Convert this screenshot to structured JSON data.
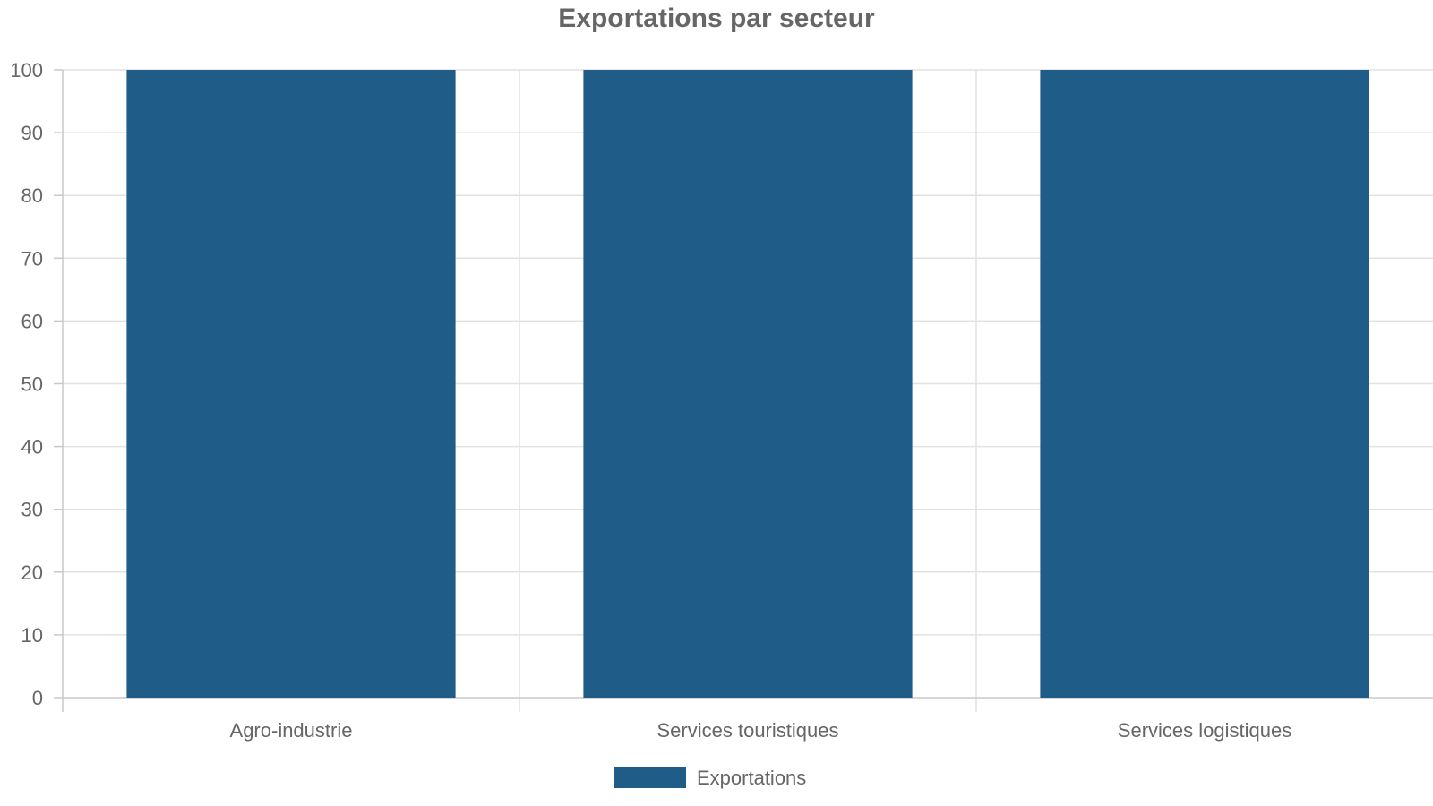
{
  "colors": {
    "bar": "#1f5c87",
    "grid": "#e2e2e2",
    "axis": "#c8c8c8",
    "text": "#666666"
  },
  "chart_data": {
    "type": "bar",
    "title": "Exportations par secteur",
    "xlabel": "",
    "ylabel": "",
    "categories": [
      "Agro-industrie",
      "Services touristiques",
      "Services logistiques"
    ],
    "series": [
      {
        "name": "Exportations",
        "values": [
          100,
          100,
          100
        ]
      }
    ],
    "ylim": [
      0,
      100
    ],
    "yticks": [
      0,
      10,
      20,
      30,
      40,
      50,
      60,
      70,
      80,
      90,
      100
    ],
    "grid": true,
    "legend": "bottom-center"
  }
}
